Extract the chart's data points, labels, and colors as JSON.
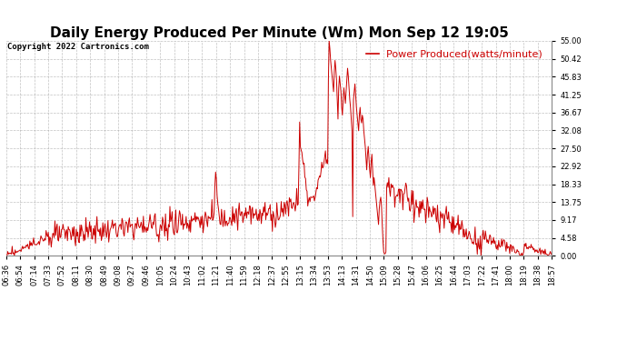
{
  "title": "Daily Energy Produced Per Minute (Wm) Mon Sep 12 19:05",
  "copyright": "Copyright 2022 Cartronics.com",
  "legend_label": "Power Produced(watts/minute)",
  "line_color": "#cc0000",
  "background_color": "#ffffff",
  "grid_color": "#999999",
  "ylim": [
    0.0,
    55.0
  ],
  "yticks": [
    0.0,
    4.58,
    9.17,
    13.75,
    18.33,
    22.92,
    27.5,
    32.08,
    36.67,
    41.25,
    45.83,
    50.42,
    55.0
  ],
  "xtick_labels": [
    "06:36",
    "06:54",
    "07:14",
    "07:33",
    "07:52",
    "08:11",
    "08:30",
    "08:49",
    "09:08",
    "09:27",
    "09:46",
    "10:05",
    "10:24",
    "10:43",
    "11:02",
    "11:21",
    "11:40",
    "11:59",
    "12:18",
    "12:37",
    "12:55",
    "13:15",
    "13:34",
    "13:53",
    "14:13",
    "14:31",
    "14:50",
    "15:09",
    "15:28",
    "15:47",
    "16:06",
    "16:25",
    "16:44",
    "17:03",
    "17:22",
    "17:41",
    "18:00",
    "18:19",
    "18:38",
    "18:57"
  ],
  "title_fontsize": 11,
  "copyright_fontsize": 6.5,
  "legend_fontsize": 8,
  "tick_fontsize": 6
}
